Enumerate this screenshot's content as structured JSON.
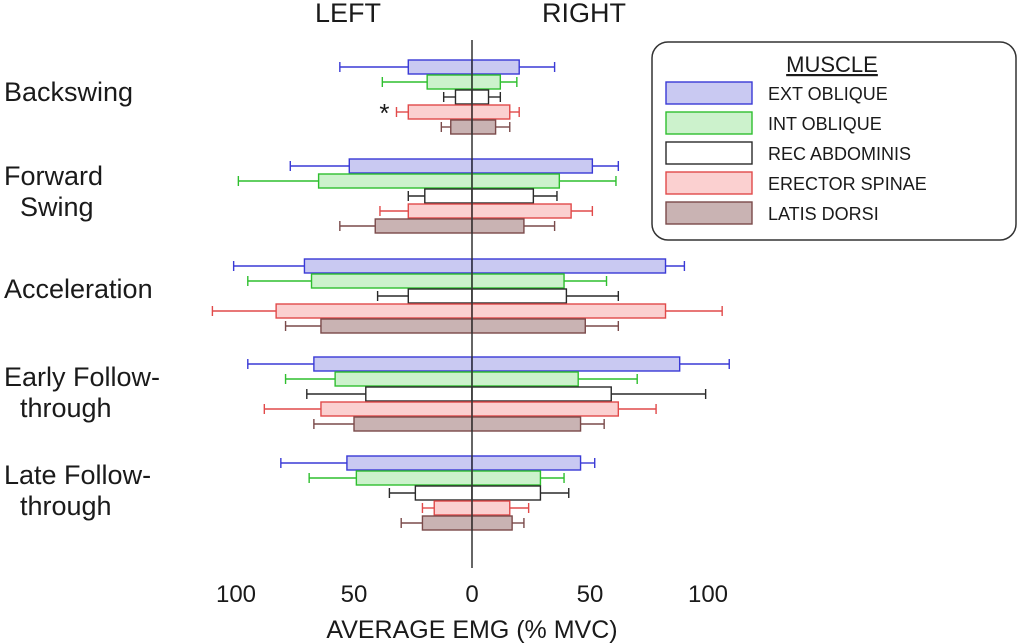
{
  "chart_data": {
    "type": "bar",
    "orientation": "horizontal-butterfly",
    "side_labels": {
      "left": "LEFT",
      "right": "RIGHT"
    },
    "categories": [
      [
        "Backswing"
      ],
      [
        "Forward",
        "Swing"
      ],
      [
        "Acceleration"
      ],
      [
        "Early Follow-",
        "through"
      ],
      [
        "Late Follow-",
        "through"
      ]
    ],
    "xlabel": "AVERAGE EMG (% MVC)",
    "xlim": [
      -100,
      100
    ],
    "xticks": [
      -100,
      -50,
      0,
      50,
      100
    ],
    "xtick_labels": [
      "100",
      "50",
      "0",
      "50",
      "100"
    ],
    "legend": {
      "title": "MUSCLE",
      "placement": "top-right"
    },
    "series": [
      {
        "name": "EXT OBLIQUE",
        "fill": "#c9c9f2",
        "stroke": "#3a3ad6",
        "err": "#3a3ad6",
        "left": [
          27,
          52,
          71,
          67,
          53
        ],
        "left_err": [
          56,
          77,
          101,
          95,
          81
        ],
        "right": [
          20,
          51,
          82,
          88,
          46
        ],
        "right_err": [
          35,
          62,
          90,
          109,
          52
        ]
      },
      {
        "name": "INT OBLIQUE",
        "fill": "#ccf2cc",
        "stroke": "#2fbf2f",
        "err": "#2fbf2f",
        "left": [
          19,
          65,
          68,
          58,
          49
        ],
        "left_err": [
          38,
          99,
          95,
          79,
          69
        ],
        "right": [
          12,
          37,
          39,
          45,
          29
        ],
        "right_err": [
          19,
          61,
          57,
          70,
          39
        ]
      },
      {
        "name": "REC ABDOMINIS",
        "fill": "#ffffff",
        "stroke": "#2a2a2a",
        "err": "#2a2a2a",
        "left": [
          7,
          20,
          27,
          45,
          24
        ],
        "left_err": [
          12,
          27,
          40,
          70,
          35
        ],
        "right": [
          7,
          26,
          40,
          59,
          29
        ],
        "right_err": [
          12,
          36,
          62,
          99,
          41
        ]
      },
      {
        "name": "ERECTOR SPINAE",
        "fill": "#fbd0d0",
        "stroke": "#e14a4a",
        "err": "#e14a4a",
        "left": [
          27,
          27,
          83,
          64,
          16
        ],
        "left_err": [
          32,
          39,
          110,
          88,
          21
        ],
        "right": [
          16,
          42,
          82,
          62,
          16
        ],
        "right_err": [
          20,
          51,
          106,
          78,
          24
        ]
      },
      {
        "name": "LATIS DORSI",
        "fill": "#c9b3b3",
        "stroke": "#7a4a4a",
        "err": "#7a4a4a",
        "left": [
          9,
          41,
          64,
          50,
          21
        ],
        "left_err": [
          13,
          56,
          79,
          67,
          30
        ],
        "right": [
          10,
          22,
          48,
          46,
          17
        ],
        "right_err": [
          16,
          35,
          62,
          56,
          22
        ]
      }
    ],
    "annotations": [
      {
        "text": "*",
        "category": "Backswing",
        "series": "ERECTOR SPINAE",
        "side": "left"
      }
    ]
  }
}
